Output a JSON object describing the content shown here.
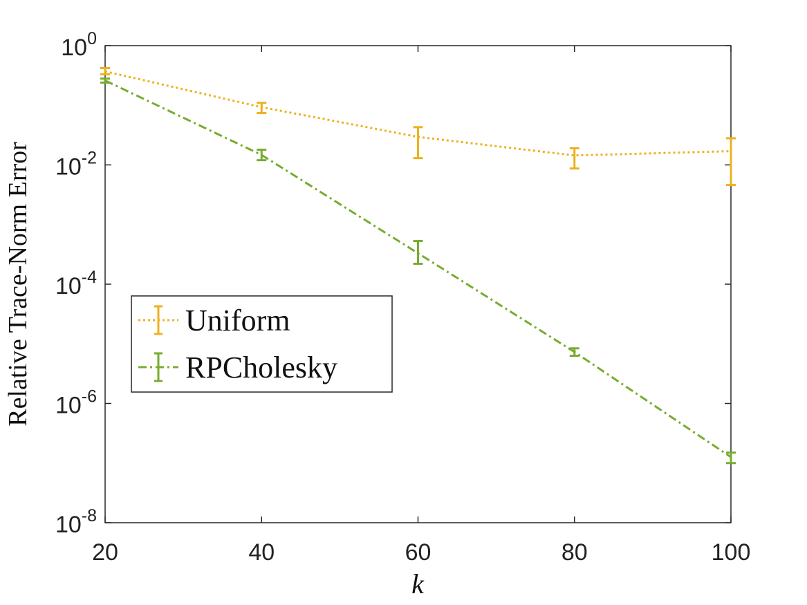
{
  "chart_data": {
    "type": "line",
    "xlabel": "k",
    "ylabel": "Relative Trace-Norm Error",
    "x": [
      20,
      40,
      60,
      80,
      100
    ],
    "xlim": [
      20,
      100
    ],
    "xticks": [
      20,
      40,
      60,
      80,
      100
    ],
    "ylim": [
      1e-08,
      1
    ],
    "log_y": true,
    "yticks": [
      {
        "value": 1e-08,
        "label": "10^-8"
      },
      {
        "value": 1e-06,
        "label": "10^-6"
      },
      {
        "value": 0.0001,
        "label": "10^-4"
      },
      {
        "value": 0.01,
        "label": "10^-2"
      },
      {
        "value": 1,
        "label": "10^0"
      }
    ],
    "legend": "center-left",
    "series": [
      {
        "name": "Uniform",
        "color": "#EDB120",
        "dash": "dotted",
        "values": [
          0.37,
          0.093,
          0.0295,
          0.0144,
          0.017
        ],
        "lower": [
          0.33,
          0.074,
          0.013,
          0.0087,
          0.0046
        ],
        "upper": [
          0.42,
          0.11,
          0.043,
          0.019,
          0.028
        ]
      },
      {
        "name": "RPCholesky",
        "color": "#77AC30",
        "dash": "dashdot",
        "values": [
          0.26,
          0.0147,
          0.00033,
          7.3e-06,
          1.26e-07
        ],
        "lower": [
          0.24,
          0.012,
          0.00022,
          6.3e-06,
          1e-07
        ],
        "upper": [
          0.28,
          0.018,
          0.00053,
          8.4e-06,
          1.5e-07
        ]
      }
    ]
  }
}
